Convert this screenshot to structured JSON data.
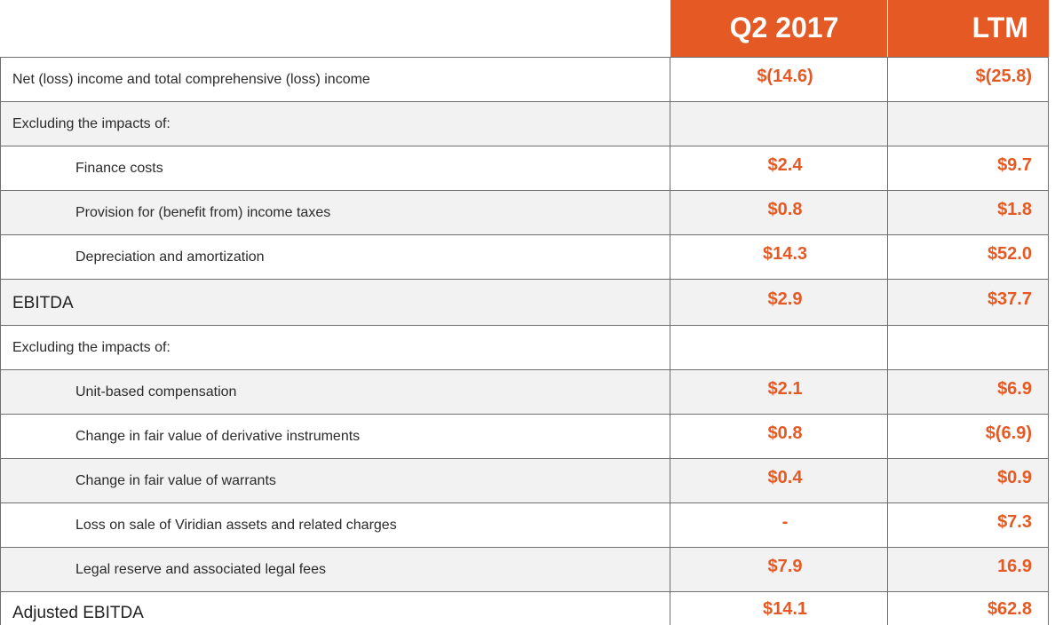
{
  "header": {
    "col_q2": "Q2 2017",
    "col_ltm": "LTM"
  },
  "rows": [
    {
      "label": "Net (loss) income and total comprehensive (loss) income",
      "q2": "$(14.6)",
      "ltm": "$(25.8)"
    },
    {
      "label": "Excluding the impacts of:",
      "q2": "",
      "ltm": ""
    },
    {
      "label": "Finance costs",
      "q2": "$2.4",
      "ltm": "$9.7"
    },
    {
      "label": "Provision for (benefit from) income taxes",
      "q2": "$0.8",
      "ltm": "$1.8"
    },
    {
      "label": "Depreciation and amortization",
      "q2": "$14.3",
      "ltm": "$52.0"
    },
    {
      "label": "EBITDA",
      "q2": "$2.9",
      "ltm": "$37.7"
    },
    {
      "label": "Excluding the impacts of:",
      "q2": "",
      "ltm": ""
    },
    {
      "label": "Unit-based compensation",
      "q2": "$2.1",
      "ltm": "$6.9"
    },
    {
      "label": "Change in fair value of derivative instruments",
      "q2": "$0.8",
      "ltm": "$(6.9)"
    },
    {
      "label": "Change in fair value of warrants",
      "q2": "$0.4",
      "ltm": "$0.9"
    },
    {
      "label": "Loss on sale of Viridian assets and related charges",
      "q2": "-",
      "ltm": "$7.3"
    },
    {
      "label": "Legal reserve and associated legal fees",
      "q2": "$7.9",
      "ltm": "16.9"
    },
    {
      "label": "Adjusted EBITDA",
      "q2": "$14.1",
      "ltm": "$62.8"
    }
  ],
  "colors": {
    "accent": "#e55a24",
    "row_shade": "#f2f2f2",
    "rule": "#6f6f6f",
    "text": "#2b2b2b"
  }
}
